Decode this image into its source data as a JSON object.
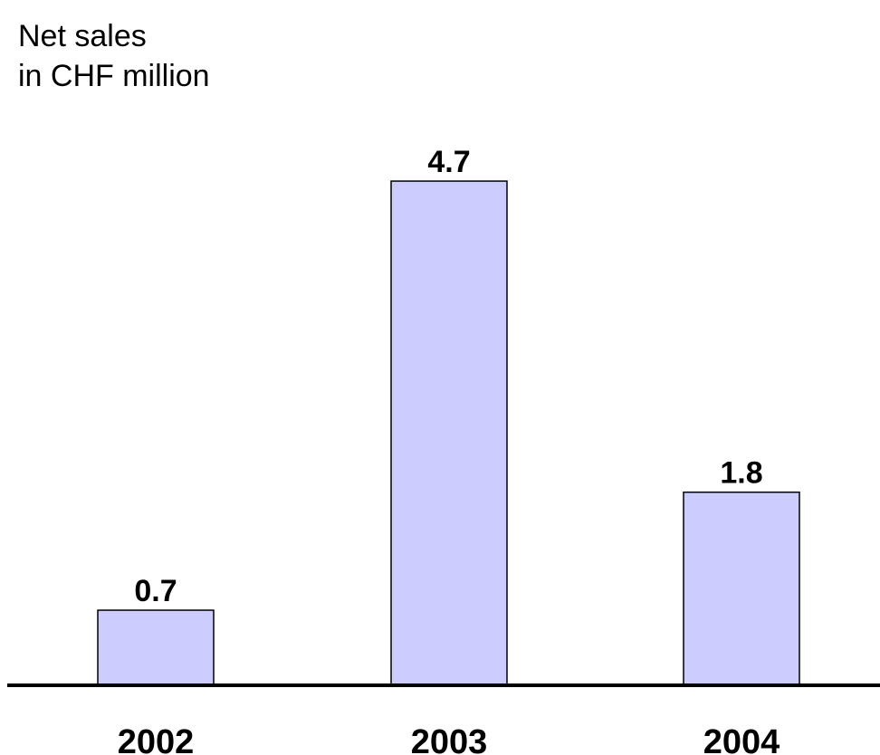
{
  "chart_data": {
    "type": "bar",
    "title": "Net sales",
    "subtitle": "in CHF million",
    "categories": [
      "2002",
      "2003",
      "2004"
    ],
    "values": [
      0.7,
      4.7,
      1.8
    ],
    "value_labels": [
      "0.7",
      "4.7",
      "1.8"
    ],
    "bar_color": "#ccccff",
    "bar_border_color": "#000000",
    "grid": false,
    "legend": "none"
  }
}
